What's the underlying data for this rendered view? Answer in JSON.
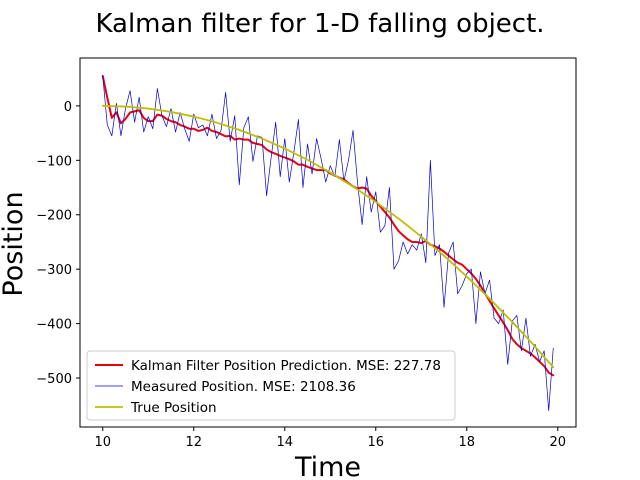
{
  "chart_data": {
    "type": "line",
    "title": "Kalman filter for 1-D falling object.",
    "xlabel": "Time",
    "ylabel": "Position",
    "xlim": [
      9.5,
      20.4
    ],
    "ylim": [
      -590,
      88
    ],
    "xticks": [
      10,
      12,
      14,
      16,
      18,
      20
    ],
    "yticks": [
      0,
      -100,
      -200,
      -300,
      -400,
      -500
    ],
    "grid": false,
    "legend_position": "lower-left",
    "series": [
      {
        "name": "Kalman Filter Position Prediction. MSE: 227.78",
        "color": "#e8000b",
        "style": "solid",
        "x": [
          10.0,
          10.1,
          10.2,
          10.3,
          10.4,
          10.5,
          10.6,
          10.7,
          10.8,
          10.9,
          11.0,
          11.1,
          11.2,
          11.3,
          11.4,
          11.5,
          11.6,
          11.7,
          11.8,
          11.9,
          12.0,
          12.1,
          12.2,
          12.3,
          12.4,
          12.5,
          12.6,
          12.7,
          12.8,
          12.9,
          13.0,
          13.1,
          13.2,
          13.3,
          13.4,
          13.5,
          13.6,
          13.7,
          13.8,
          13.9,
          14.0,
          14.1,
          14.2,
          14.3,
          14.4,
          14.5,
          14.6,
          14.7,
          14.8,
          14.9,
          15.0,
          15.1,
          15.2,
          15.3,
          15.4,
          15.5,
          15.6,
          15.7,
          15.8,
          15.9,
          16.0,
          16.1,
          16.2,
          16.3,
          16.4,
          16.5,
          16.6,
          16.7,
          16.8,
          16.9,
          17.0,
          17.1,
          17.2,
          17.3,
          17.4,
          17.5,
          17.6,
          17.7,
          17.8,
          17.9,
          18.0,
          18.1,
          18.2,
          18.3,
          18.4,
          18.5,
          18.6,
          18.7,
          18.8,
          18.9,
          19.0,
          19.1,
          19.2,
          19.3,
          19.4,
          19.5,
          19.6,
          19.7,
          19.8,
          19.9
        ],
        "values": [
          55,
          15,
          -22,
          -12,
          -32,
          -24,
          -12,
          -10,
          -8,
          -22,
          -28,
          -28,
          -16,
          -18,
          -24,
          -28,
          -30,
          -35,
          -38,
          -42,
          -42,
          -46,
          -44,
          -40,
          -46,
          -48,
          -52,
          -56,
          -55,
          -62,
          -60,
          -62,
          -62,
          -68,
          -70,
          -72,
          -80,
          -85,
          -88,
          -92,
          -95,
          -98,
          -102,
          -108,
          -108,
          -112,
          -115,
          -118,
          -118,
          -118,
          -124,
          -128,
          -132,
          -135,
          -142,
          -148,
          -152,
          -150,
          -152,
          -165,
          -175,
          -185,
          -195,
          -205,
          -218,
          -230,
          -238,
          -245,
          -250,
          -250,
          -252,
          -248,
          -255,
          -258,
          -262,
          -268,
          -275,
          -282,
          -288,
          -292,
          -300,
          -308,
          -318,
          -330,
          -345,
          -358,
          -372,
          -385,
          -398,
          -412,
          -428,
          -438,
          -445,
          -450,
          -455,
          -462,
          -470,
          -478,
          -490,
          -495
        ]
      },
      {
        "name": "Measured Position. MSE: 2108.36",
        "color": "#0000d8",
        "style": "solid",
        "x": [
          10.0,
          10.1,
          10.2,
          10.3,
          10.4,
          10.5,
          10.6,
          10.7,
          10.8,
          10.9,
          11.0,
          11.1,
          11.2,
          11.3,
          11.4,
          11.5,
          11.6,
          11.7,
          11.8,
          11.9,
          12.0,
          12.1,
          12.2,
          12.3,
          12.4,
          12.5,
          12.6,
          12.7,
          12.8,
          12.9,
          13.0,
          13.1,
          13.2,
          13.3,
          13.4,
          13.5,
          13.6,
          13.7,
          13.8,
          13.9,
          14.0,
          14.1,
          14.2,
          14.3,
          14.4,
          14.5,
          14.6,
          14.7,
          14.8,
          14.9,
          15.0,
          15.1,
          15.2,
          15.3,
          15.4,
          15.5,
          15.6,
          15.7,
          15.8,
          15.9,
          16.0,
          16.1,
          16.2,
          16.3,
          16.4,
          16.5,
          16.6,
          16.7,
          16.8,
          16.9,
          17.0,
          17.1,
          17.2,
          17.3,
          17.4,
          17.5,
          17.6,
          17.7,
          17.8,
          17.9,
          18.0,
          18.1,
          18.2,
          18.3,
          18.4,
          18.5,
          18.6,
          18.7,
          18.8,
          18.9,
          19.0,
          19.1,
          19.2,
          19.3,
          19.4,
          19.5,
          19.6,
          19.7,
          19.8,
          19.9
        ],
        "values": [
          55,
          -35,
          -55,
          5,
          -55,
          -5,
          28,
          -30,
          16,
          -48,
          -20,
          -42,
          32,
          -18,
          -38,
          -5,
          -48,
          -12,
          -42,
          -65,
          -15,
          -40,
          -35,
          -55,
          -15,
          -60,
          -45,
          25,
          -65,
          -18,
          -145,
          -40,
          -20,
          -102,
          -55,
          -58,
          -165,
          -95,
          -30,
          -130,
          -60,
          -140,
          -85,
          -25,
          -150,
          -70,
          -125,
          -60,
          -98,
          -140,
          -110,
          -130,
          -62,
          -138,
          -100,
          -45,
          -142,
          -218,
          -130,
          -195,
          -158,
          -232,
          -220,
          -150,
          -300,
          -285,
          -250,
          -272,
          -255,
          -265,
          -235,
          -288,
          -100,
          -275,
          -255,
          -370,
          -270,
          -250,
          -345,
          -330,
          -308,
          -300,
          -400,
          -305,
          -345,
          -320,
          -390,
          -400,
          -375,
          -475,
          -395,
          -385,
          -450,
          -390,
          -460,
          -438,
          -470,
          -450,
          -560,
          -445
        ]
      },
      {
        "name": "True Position",
        "color": "#bfbf00",
        "style": "solid",
        "x": [
          10.0,
          10.5,
          11.0,
          11.5,
          12.0,
          12.5,
          13.0,
          13.5,
          14.0,
          14.5,
          15.0,
          15.5,
          16.0,
          16.5,
          17.0,
          17.5,
          18.0,
          18.5,
          19.0,
          19.5,
          19.9
        ],
        "values": [
          0,
          -1.2,
          -4.9,
          -11.0,
          -19.6,
          -30.6,
          -44.1,
          -60.0,
          -78.4,
          -99.2,
          -122.5,
          -148.2,
          -176.4,
          -207.0,
          -240.1,
          -275.6,
          -313.6,
          -354.0,
          -396.9,
          -442.2,
          -480.2
        ]
      }
    ]
  }
}
